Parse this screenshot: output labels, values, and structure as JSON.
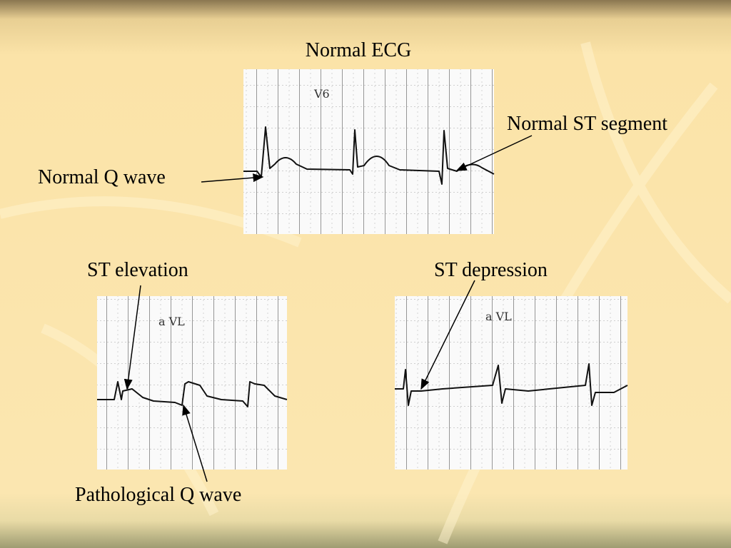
{
  "title": "Normal ECG",
  "panels": [
    {
      "lead": "V6",
      "labels": [
        "Normal ST segment",
        "Normal Q wave"
      ]
    },
    {
      "lead": "a VL",
      "labels": [
        "ST elevation",
        "Pathological Q wave"
      ]
    },
    {
      "lead": "a VL",
      "labels": [
        "ST depression"
      ]
    }
  ]
}
